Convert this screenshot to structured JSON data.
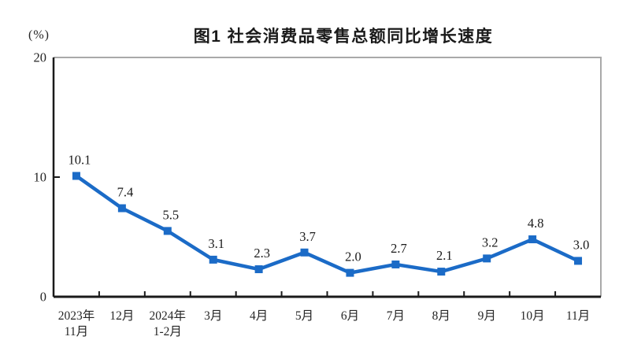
{
  "chart_data": {
    "type": "line",
    "title": "图1  社会消费品零售总额同比增长速度",
    "unit_label": "(%)",
    "categories": [
      "2023年\n11月",
      "12月",
      "2024年\n1-2月",
      "3月",
      "4月",
      "5月",
      "6月",
      "7月",
      "8月",
      "9月",
      "10月",
      "11月"
    ],
    "values": [
      10.1,
      7.4,
      5.5,
      3.1,
      2.3,
      3.7,
      2.0,
      2.7,
      2.1,
      3.2,
      4.8,
      3.0
    ],
    "data_labels": [
      "10.1",
      "7.4",
      "5.5",
      "3.1",
      "2.3",
      "3.7",
      "2.0",
      "2.7",
      "2.1",
      "3.2",
      "4.8",
      "3.0"
    ],
    "ylim": [
      0,
      20
    ],
    "yticks": [
      0,
      10,
      20
    ],
    "xlabel": "",
    "ylabel": "(%)",
    "grid": false,
    "legend": null,
    "colors": {
      "line": "#1B6BC7",
      "marker": "#1B6BC7",
      "axis": "#1a1a1a",
      "frame": "#a9a9a9",
      "text": "#262626",
      "label_text": "#1a1a1a"
    }
  }
}
